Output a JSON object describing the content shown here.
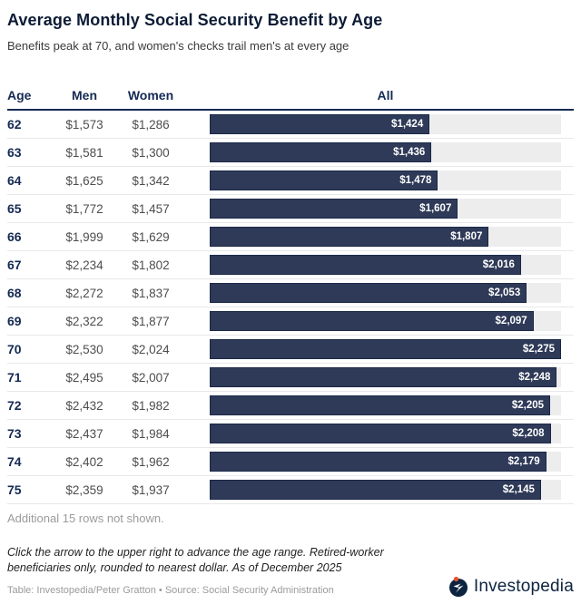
{
  "header": {
    "title": "Average Monthly Social Security Benefit by Age",
    "subtitle": "Benefits peak at 70, and women's checks trail men's at every age"
  },
  "columns": {
    "age": "Age",
    "men": "Men",
    "women": "Women",
    "all": "All"
  },
  "chart_data": {
    "type": "bar",
    "title": "Average Monthly Social Security Benefit by Age",
    "subtitle": "Benefits peak at 70, and women's checks trail men's at every age",
    "columns": [
      "Age",
      "Men",
      "Women",
      "All"
    ],
    "xlim": [
      0,
      2275
    ],
    "scale_max": 2275,
    "legend": "none",
    "grid": false,
    "rows": [
      {
        "age": "62",
        "men": "$1,573",
        "women": "$1,286",
        "all": 1424,
        "all_label": "$1,424"
      },
      {
        "age": "63",
        "men": "$1,581",
        "women": "$1,300",
        "all": 1436,
        "all_label": "$1,436"
      },
      {
        "age": "64",
        "men": "$1,625",
        "women": "$1,342",
        "all": 1478,
        "all_label": "$1,478"
      },
      {
        "age": "65",
        "men": "$1,772",
        "women": "$1,457",
        "all": 1607,
        "all_label": "$1,607"
      },
      {
        "age": "66",
        "men": "$1,999",
        "women": "$1,629",
        "all": 1807,
        "all_label": "$1,807"
      },
      {
        "age": "67",
        "men": "$2,234",
        "women": "$1,802",
        "all": 2016,
        "all_label": "$2,016"
      },
      {
        "age": "68",
        "men": "$2,272",
        "women": "$1,837",
        "all": 2053,
        "all_label": "$2,053"
      },
      {
        "age": "69",
        "men": "$2,322",
        "women": "$1,877",
        "all": 2097,
        "all_label": "$2,097"
      },
      {
        "age": "70",
        "men": "$2,530",
        "women": "$2,024",
        "all": 2275,
        "all_label": "$2,275"
      },
      {
        "age": "71",
        "men": "$2,495",
        "women": "$2,007",
        "all": 2248,
        "all_label": "$2,248"
      },
      {
        "age": "72",
        "men": "$2,432",
        "women": "$1,982",
        "all": 2205,
        "all_label": "$2,205"
      },
      {
        "age": "73",
        "men": "$2,437",
        "women": "$1,984",
        "all": 2208,
        "all_label": "$2,208"
      },
      {
        "age": "74",
        "men": "$2,402",
        "women": "$1,962",
        "all": 2179,
        "all_label": "$2,179"
      },
      {
        "age": "75",
        "men": "$2,359",
        "women": "$1,937",
        "all": 2145,
        "all_label": "$2,145"
      }
    ]
  },
  "footer": {
    "more_rows_note": "Additional 15 rows not shown.",
    "italic_note": "Click the arrow to the upper right to advance the age range. Retired-worker beneficiaries only, rounded to nearest dollar. As of December 2025",
    "credit": "Table: Investopedia/Peter Gratton • Source: Social Security Administration",
    "logo_text": "Investopedia"
  },
  "colors": {
    "bar_fill": "#2f3a58",
    "bar_border": "#1b2847",
    "track": "#ededed",
    "navy": "#152a53",
    "logo_navy": "#0d2440",
    "logo_accent": "#e8542e"
  }
}
